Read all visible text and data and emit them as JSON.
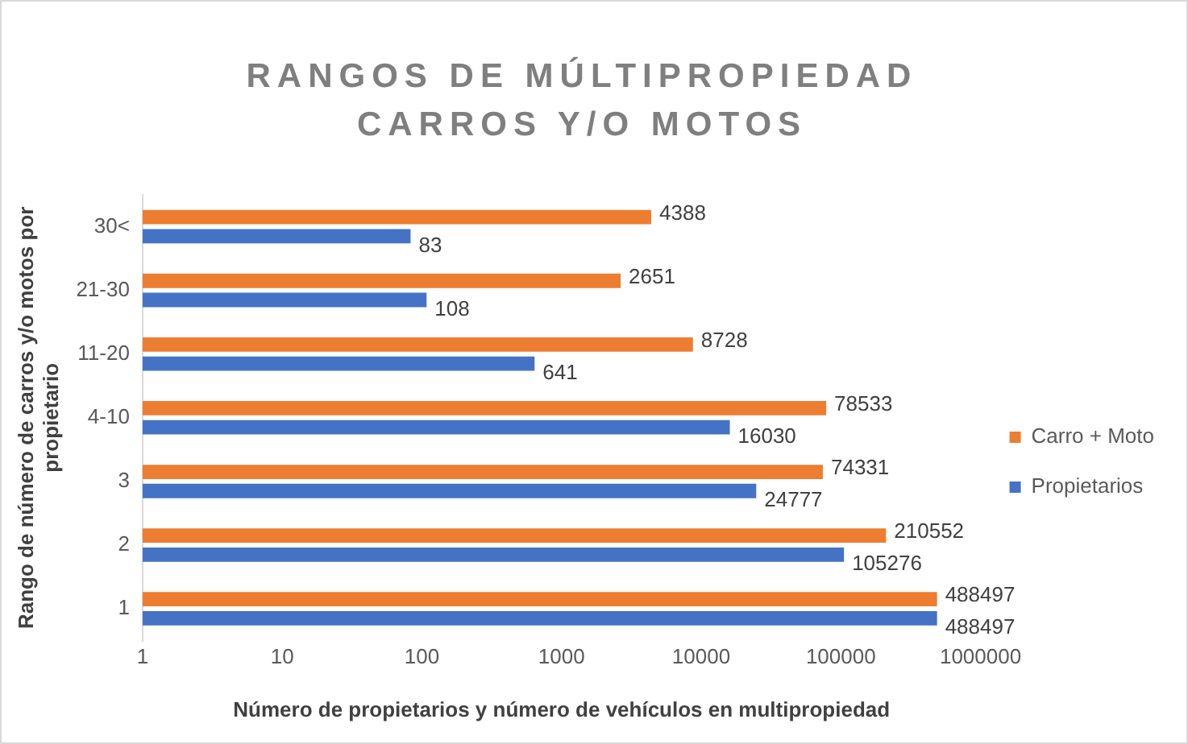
{
  "chart_data": {
    "type": "bar",
    "orientation": "horizontal",
    "title": "RANGOS DE MÚLTIPROPIEDAD CARROS Y/O MOTOS",
    "xlabel": "Número de propietarios y número de vehículos en multipropiedad",
    "ylabel": "Rango de número de carros y/o motos por propietario",
    "categories": [
      "30<",
      "21-30",
      "11-20",
      "4-10",
      "3",
      "2",
      "1"
    ],
    "series": [
      {
        "name": "Carro + Moto",
        "color": "#ed7d31",
        "values": [
          4388,
          2651,
          8728,
          78533,
          74331,
          210552,
          488497
        ]
      },
      {
        "name": "Propietarios",
        "color": "#4472c4",
        "values": [
          83,
          108,
          641,
          16030,
          24777,
          105276,
          488497
        ]
      }
    ],
    "log": "x",
    "xlim": [
      1,
      1000000
    ],
    "xticks": [
      1,
      10,
      100,
      1000,
      10000,
      100000,
      1000000
    ],
    "grid": false,
    "legend": "right",
    "data_labels": true
  }
}
